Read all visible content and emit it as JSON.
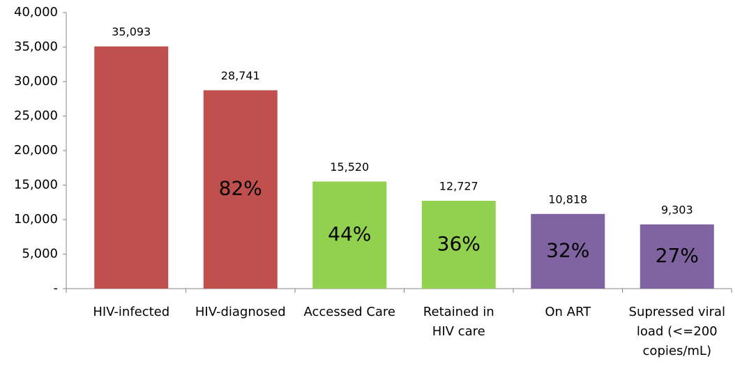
{
  "chart_data": {
    "type": "bar",
    "categories": [
      "HIV-infected",
      "HIV-diagnosed",
      "Accessed Care",
      "Retained in\nHIV care",
      "On ART",
      "Supressed viral\nload (<=200\ncopies/mL)"
    ],
    "values": [
      35093,
      28741,
      15520,
      12727,
      10818,
      9303
    ],
    "value_labels": [
      "35,093",
      "28,741",
      "15,520",
      "12,727",
      "10,818",
      "9,303"
    ],
    "share_labels": [
      null,
      "82%",
      "44%",
      "36%",
      "32%",
      "27%"
    ],
    "colors": [
      "#c0504d",
      "#c0504d",
      "#92d050",
      "#92d050",
      "#8064a2",
      "#8064a2"
    ],
    "ylim": [
      0,
      40000
    ],
    "yticks": [
      {
        "value": 0,
        "label": "-"
      },
      {
        "value": 5000,
        "label": "5,000"
      },
      {
        "value": 10000,
        "label": "10,000"
      },
      {
        "value": 15000,
        "label": "15,000"
      },
      {
        "value": 20000,
        "label": "20,000"
      },
      {
        "value": 25000,
        "label": "25,000"
      },
      {
        "value": 30000,
        "label": "30,000"
      },
      {
        "value": 35000,
        "label": "35,000"
      },
      {
        "value": 40000,
        "label": "40,000"
      }
    ],
    "grid": false
  }
}
